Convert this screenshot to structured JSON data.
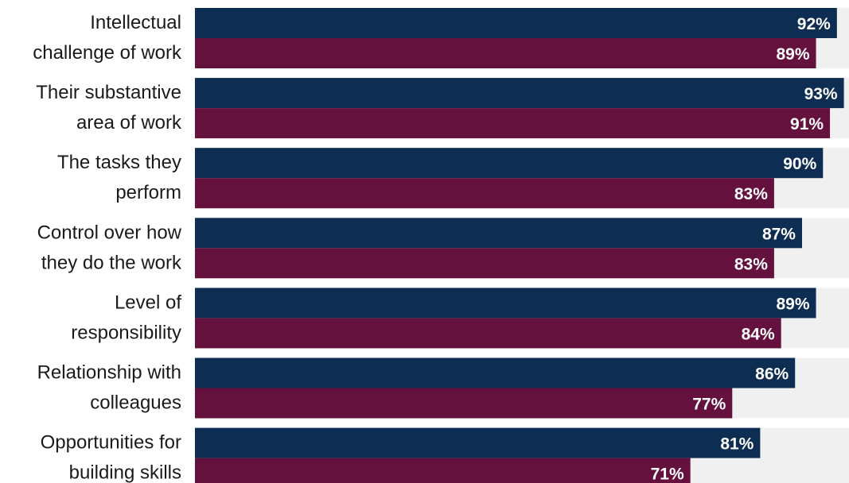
{
  "chart_data": {
    "type": "bar",
    "orientation": "horizontal",
    "categories": [
      [
        "Intellectual",
        "challenge of work"
      ],
      [
        "Their substantive",
        "area of work"
      ],
      [
        "The tasks they",
        "perform"
      ],
      [
        "Control over how",
        "they do the work"
      ],
      [
        "Level of",
        "responsibility"
      ],
      [
        "Relationship with",
        "colleagues"
      ],
      [
        "Opportunities for",
        "building skills"
      ]
    ],
    "series": [
      {
        "values": [
          92,
          93,
          90,
          87,
          89,
          86,
          81
        ],
        "labels": [
          "92%",
          "93%",
          "90%",
          "87%",
          "89%",
          "86%",
          "81%"
        ],
        "color": "#0d2d52"
      },
      {
        "values": [
          89,
          91,
          83,
          83,
          84,
          77,
          71
        ],
        "labels": [
          "89%",
          "91%",
          "83%",
          "83%",
          "84%",
          "77%",
          "71%"
        ],
        "color": "#65113e"
      }
    ],
    "xlim": [
      0,
      100
    ],
    "background_track_color": "#f0f0f0",
    "label_color": "#ffffff",
    "category_label_color": "#1a1a1a",
    "grid": false,
    "legend": "none"
  }
}
